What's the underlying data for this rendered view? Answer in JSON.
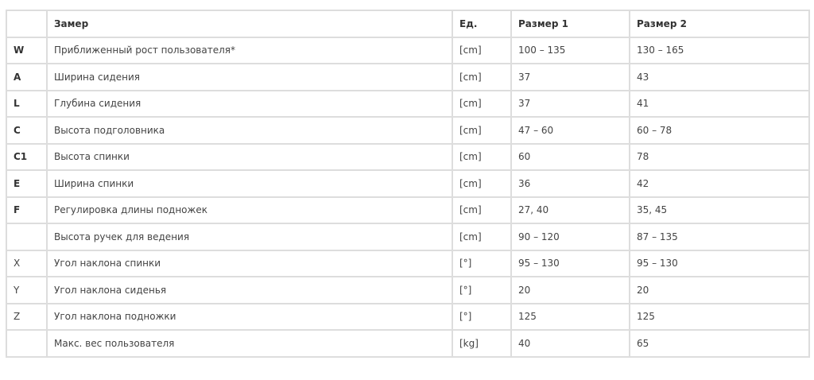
{
  "header": {
    "code": "",
    "measure": "Замер",
    "unit": "Ед.",
    "size1": "Размер 1",
    "size2": "Размер 2"
  },
  "rows": [
    {
      "code": "W",
      "bold": true,
      "measure": "Приближенный рост пользователя*",
      "unit": "[cm]",
      "size1": "100 – 135",
      "size2": "130 – 165"
    },
    {
      "code": "A",
      "bold": true,
      "measure": "Ширина сидения",
      "unit": "[cm]",
      "size1": "37",
      "size2": "43"
    },
    {
      "code": "L",
      "bold": true,
      "measure": "Глубина сидения",
      "unit": "[cm]",
      "size1": "37",
      "size2": "41"
    },
    {
      "code": "C",
      "bold": true,
      "measure": "Высота подголовника",
      "unit": "[cm]",
      "size1": "47 – 60",
      "size2": "60 – 78"
    },
    {
      "code": "C1",
      "bold": true,
      "measure": "Высота спинки",
      "unit": "[cm]",
      "size1": "60",
      "size2": "78"
    },
    {
      "code": "E",
      "bold": true,
      "measure": "Ширина спинки",
      "unit": "[cm]",
      "size1": "36",
      "size2": "42"
    },
    {
      "code": "F",
      "bold": true,
      "measure": "Регулировка длины подножек",
      "unit": "[cm]",
      "size1": "27, 40",
      "size2": "35, 45"
    },
    {
      "code": "",
      "bold": false,
      "measure": "Высота ручек для ведения",
      "unit": "[cm]",
      "size1": "90 – 120",
      "size2": "87 – 135"
    },
    {
      "code": "X",
      "bold": false,
      "measure": "Угол наклона спинки",
      "unit": "[°]",
      "size1": "95 – 130",
      "size2": "95 – 130"
    },
    {
      "code": "Y",
      "bold": false,
      "measure": "Угол наклона сиденья",
      "unit": "[°]",
      "size1": "20",
      "size2": "20"
    },
    {
      "code": "Z",
      "bold": false,
      "measure": "Угол наклона подножки",
      "unit": "[°]",
      "size1": "125",
      "size2": "125"
    },
    {
      "code": "",
      "bold": false,
      "measure": "Макс. вес пользователя",
      "unit": "[kg]",
      "size1": "40",
      "size2": "65"
    }
  ]
}
